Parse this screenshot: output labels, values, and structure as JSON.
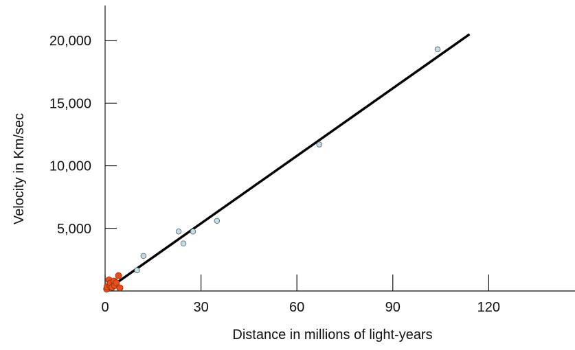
{
  "chart_data": {
    "type": "scatter",
    "title": "",
    "xlabel": "Distance in millions of light-years",
    "ylabel": "Velocity in Km/sec",
    "xlim": [
      0,
      147
    ],
    "ylim": [
      0,
      22800
    ],
    "x_ticks": [
      0,
      30,
      60,
      90,
      120
    ],
    "x_tick_labels": [
      "0",
      "30",
      "60",
      "90",
      "120"
    ],
    "y_ticks": [
      5000,
      10000,
      15000,
      20000
    ],
    "y_tick_labels": [
      "5,000",
      "10,000",
      "15,000",
      "20,000"
    ],
    "grid": false,
    "colors": {
      "near_fill": "#e84f1c",
      "near_stroke": "#8a2a08",
      "far_fill": "#c6dde4",
      "far_stroke": "#4a5a60",
      "line": "#000000"
    },
    "series": [
      {
        "marker": "near",
        "points": [
          {
            "x": 0.5,
            "y": 150
          },
          {
            "x": 0.6,
            "y": 330
          },
          {
            "x": 1.2,
            "y": 880
          },
          {
            "x": 1.5,
            "y": 440
          },
          {
            "x": 1.6,
            "y": 620
          },
          {
            "x": 2.2,
            "y": 290
          },
          {
            "x": 2.8,
            "y": 790
          },
          {
            "x": 3.0,
            "y": 450
          },
          {
            "x": 3.5,
            "y": 650
          },
          {
            "x": 4.2,
            "y": 1220
          },
          {
            "x": 4.6,
            "y": 250
          }
        ]
      },
      {
        "marker": "far",
        "points": [
          {
            "x": 10,
            "y": 1650
          },
          {
            "x": 12,
            "y": 2800
          },
          {
            "x": 23,
            "y": 4750
          },
          {
            "x": 24.5,
            "y": 3800
          },
          {
            "x": 27.5,
            "y": 4750
          },
          {
            "x": 35,
            "y": 5600
          },
          {
            "x": 67,
            "y": 11700
          },
          {
            "x": 104,
            "y": 19300
          }
        ]
      }
    ],
    "fit_line": {
      "x": [
        0,
        114
      ],
      "y": [
        0,
        20500
      ]
    }
  }
}
